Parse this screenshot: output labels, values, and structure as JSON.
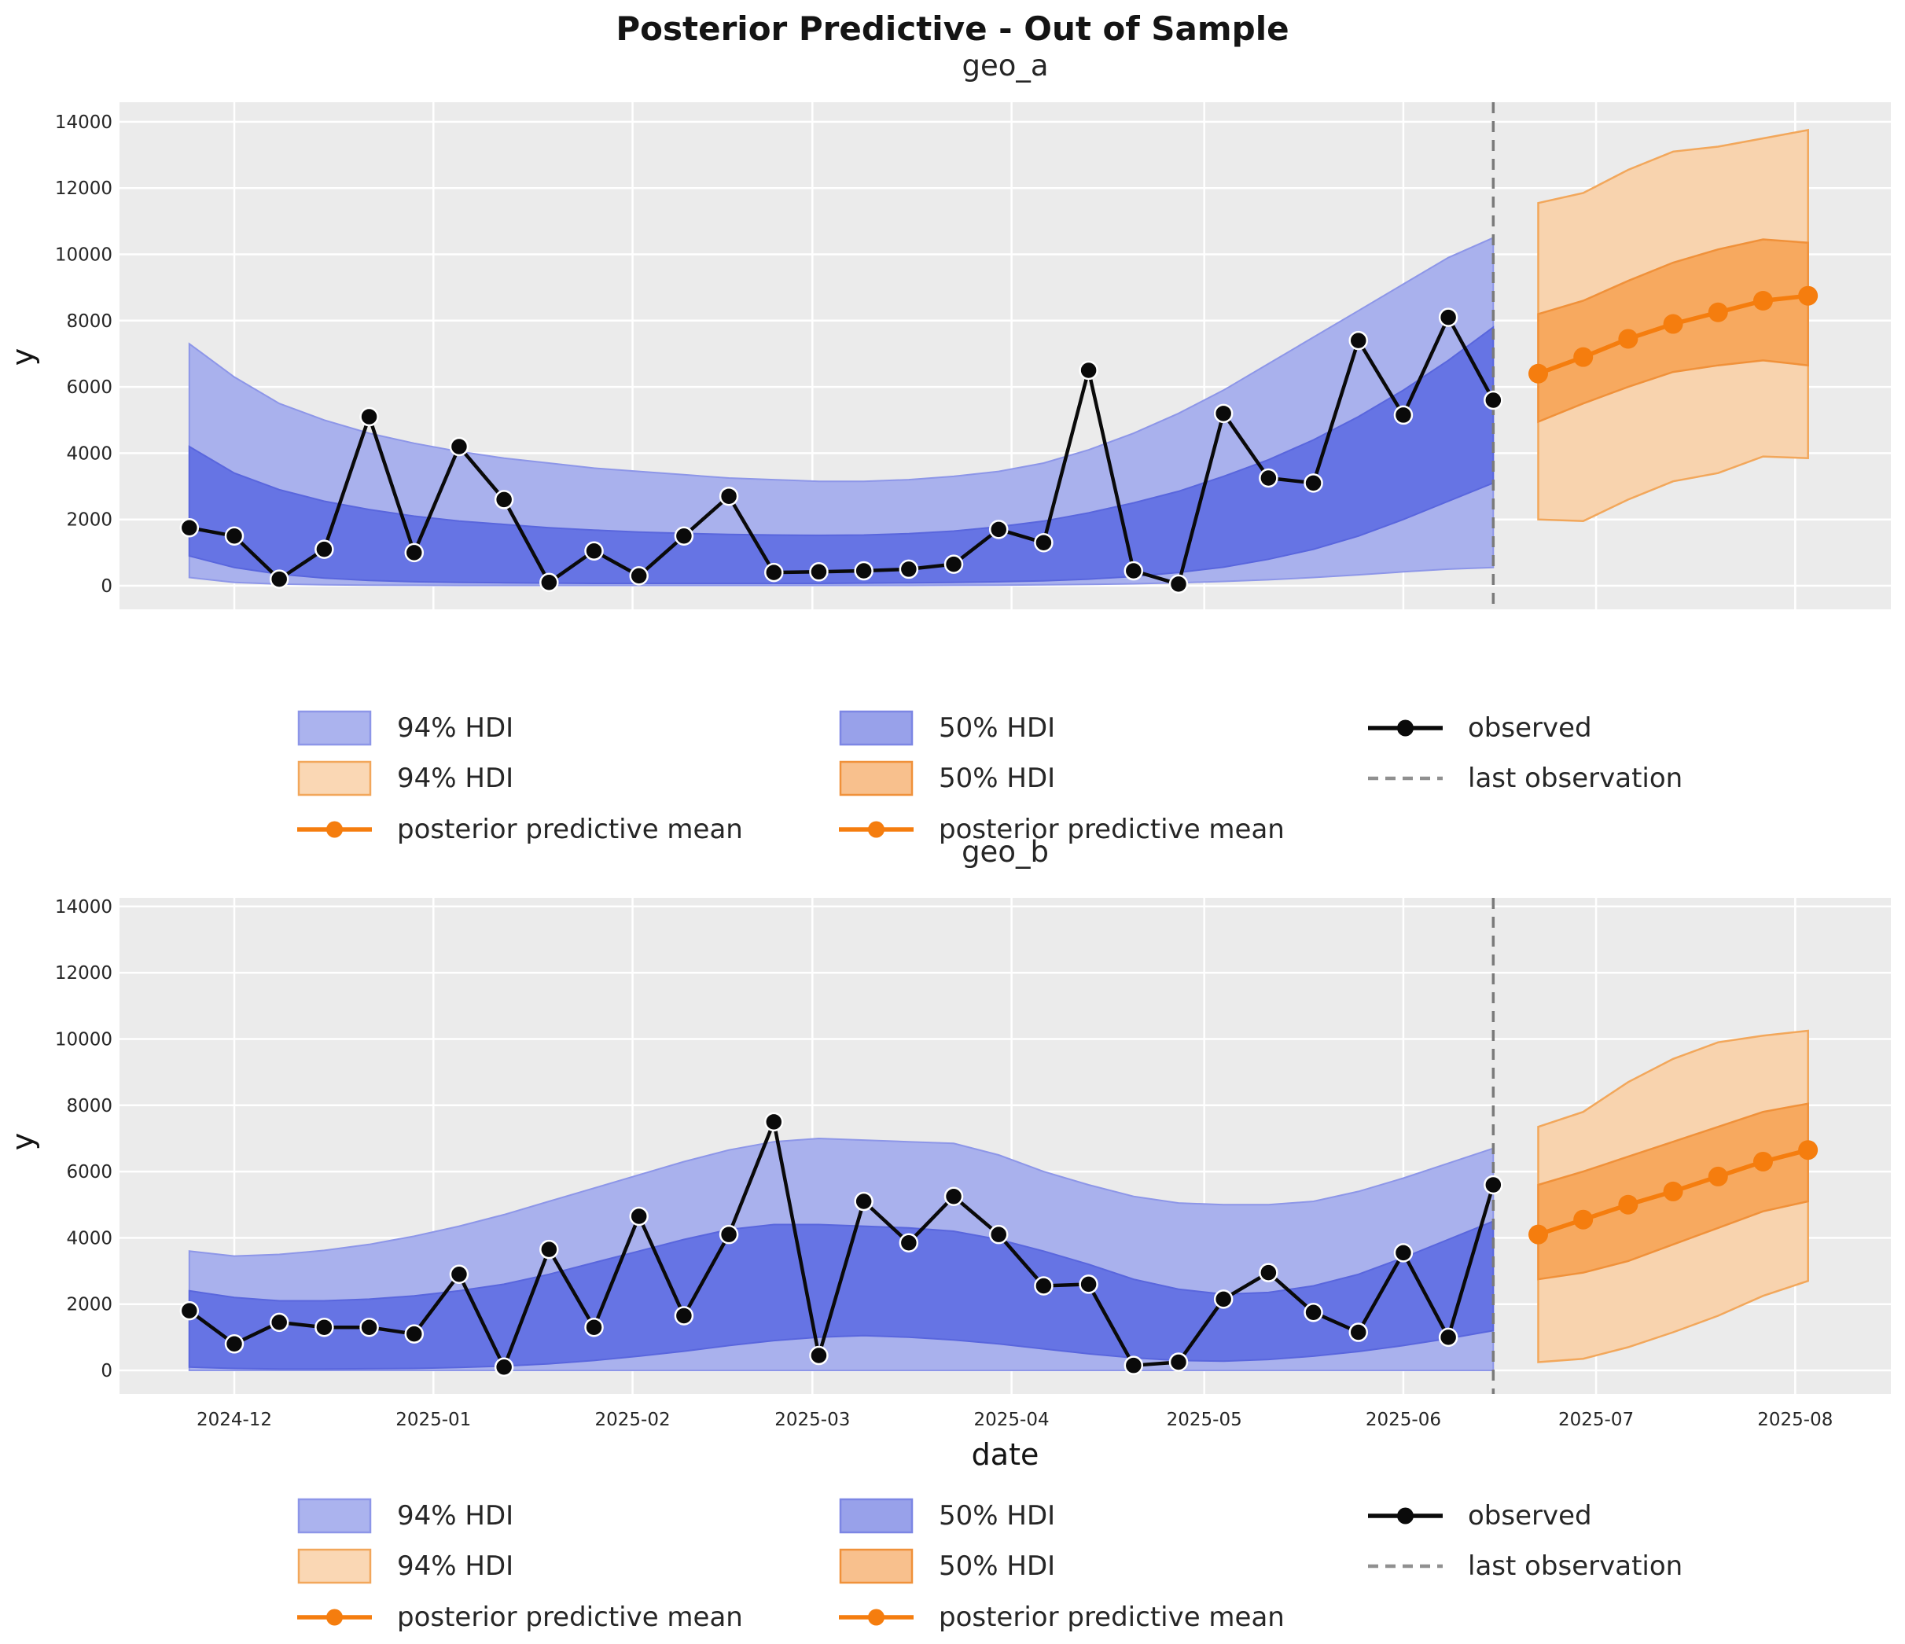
{
  "figure": {
    "title": "Posterior Predictive - Out of Sample"
  },
  "axes": {
    "y_label": "y",
    "x_label": "date",
    "y_ticks": [
      0,
      2000,
      4000,
      6000,
      8000,
      10000,
      12000,
      14000
    ],
    "x_ticks": [
      {
        "label": "2024-12",
        "date": "2024-12-01"
      },
      {
        "label": "2025-01",
        "date": "2025-01-01"
      },
      {
        "label": "2025-02",
        "date": "2025-02-01"
      },
      {
        "label": "2025-03",
        "date": "2025-03-01"
      },
      {
        "label": "2025-04",
        "date": "2025-04-01"
      },
      {
        "label": "2025-05",
        "date": "2025-05-01"
      },
      {
        "label": "2025-06",
        "date": "2025-06-01"
      },
      {
        "label": "2025-07",
        "date": "2025-07-01"
      },
      {
        "label": "2025-08",
        "date": "2025-08-01"
      }
    ],
    "grid": true
  },
  "colors": {
    "axes_bg": "#ebebeb",
    "grid": "#ffffff",
    "observed": "#0a0a0a",
    "observed_marker_edge": "#ffffff",
    "last_observation": "#7a7a7a",
    "forecast_mean": "#f57d0e",
    "blue_hdi94_fill": "#a9b1ed",
    "blue_hdi94_edge": "#8d96e8",
    "blue_hdi50_fill": "#6674e4",
    "blue_hdi50_edge": "#5966dd",
    "orange_hdi94_fill": "#f8d3ae",
    "orange_hdi94_edge": "#f2a75b",
    "orange_hdi50_fill": "#f7a95f",
    "orange_hdi50_edge": "#f0913a",
    "legend_blue_94": "#abb3ee",
    "legend_blue_50": "#98a1ea",
    "legend_orange_94": "#fad7b4",
    "legend_orange_50": "#f8c08d",
    "tick_text": "#262626"
  },
  "legend": {
    "items": [
      {
        "col": 0,
        "row": 0,
        "type": "patch",
        "label": "94% HDI",
        "fill": "#abb3ee",
        "edge": "#8d96e8",
        "name": "legend-item-94-hdi-blue"
      },
      {
        "col": 1,
        "row": 0,
        "type": "patch",
        "label": "50% HDI",
        "fill": "#98a1ea",
        "edge": "#7c86e4",
        "name": "legend-item-50-hdi-blue"
      },
      {
        "col": 2,
        "row": 0,
        "type": "line-dot",
        "label": "observed",
        "color": "#0a0a0a",
        "name": "legend-item-observed"
      },
      {
        "col": 0,
        "row": 1,
        "type": "patch",
        "label": "94% HDI",
        "fill": "#fad7b4",
        "edge": "#f2a75b",
        "name": "legend-item-94-hdi-orange"
      },
      {
        "col": 1,
        "row": 1,
        "type": "patch",
        "label": "50% HDI",
        "fill": "#f8c08d",
        "edge": "#f0913a",
        "name": "legend-item-50-hdi-orange"
      },
      {
        "col": 2,
        "row": 1,
        "type": "dash",
        "label": "last observation",
        "color": "#909090",
        "name": "legend-item-last-observation"
      },
      {
        "col": 0,
        "row": 2,
        "type": "line-dot",
        "label": "posterior predictive mean",
        "color": "#f57d0e",
        "name": "legend-item-posterior-predictive-mean-94"
      },
      {
        "col": 1,
        "row": 2,
        "type": "line-dot",
        "label": "posterior predictive mean",
        "color": "#f57d0e",
        "name": "legend-item-posterior-predictive-mean-50"
      }
    ]
  },
  "chart_data": [
    {
      "type": "line",
      "title": "geo_a",
      "ylim": [
        0,
        14000
      ],
      "last_observation": "2025-06-15",
      "dates_observed": [
        "2024-11-24",
        "2024-12-01",
        "2024-12-08",
        "2024-12-15",
        "2024-12-22",
        "2024-12-29",
        "2025-01-05",
        "2025-01-12",
        "2025-01-19",
        "2025-01-26",
        "2025-02-02",
        "2025-02-09",
        "2025-02-16",
        "2025-02-23",
        "2025-03-02",
        "2025-03-09",
        "2025-03-16",
        "2025-03-23",
        "2025-03-30",
        "2025-04-06",
        "2025-04-13",
        "2025-04-20",
        "2025-04-27",
        "2025-05-04",
        "2025-05-11",
        "2025-05-18",
        "2025-05-25",
        "2025-06-01",
        "2025-06-08",
        "2025-06-15"
      ],
      "observed": [
        1750,
        1500,
        200,
        1100,
        5100,
        1000,
        4200,
        2600,
        100,
        1050,
        300,
        1500,
        2700,
        400,
        420,
        450,
        500,
        650,
        1700,
        1300,
        6500,
        450,
        50,
        5200,
        3250,
        3100,
        7400,
        5150,
        8100,
        5600
      ],
      "hdi94_lower": [
        250,
        100,
        50,
        30,
        20,
        15,
        10,
        10,
        10,
        10,
        10,
        10,
        10,
        10,
        10,
        10,
        10,
        15,
        20,
        30,
        40,
        60,
        90,
        130,
        180,
        250,
        330,
        420,
        500,
        550
      ],
      "hdi94_upper": [
        7300,
        6300,
        5500,
        5000,
        4600,
        4300,
        4050,
        3850,
        3700,
        3550,
        3450,
        3350,
        3250,
        3200,
        3150,
        3150,
        3200,
        3300,
        3450,
        3700,
        4100,
        4600,
        5200,
        5900,
        6700,
        7500,
        8300,
        9100,
        9900,
        10500
      ],
      "hdi50_lower": [
        900,
        550,
        350,
        230,
        160,
        120,
        100,
        90,
        80,
        70,
        70,
        70,
        70,
        70,
        70,
        80,
        90,
        100,
        120,
        150,
        200,
        280,
        400,
        560,
        800,
        1100,
        1500,
        2000,
        2550,
        3100
      ],
      "hdi50_upper": [
        4200,
        3400,
        2900,
        2550,
        2300,
        2100,
        1950,
        1850,
        1750,
        1680,
        1620,
        1580,
        1550,
        1530,
        1520,
        1530,
        1570,
        1650,
        1780,
        1950,
        2200,
        2500,
        2850,
        3300,
        3800,
        4400,
        5100,
        5900,
        6800,
        7800
      ],
      "forecast": {
        "dates": [
          "2025-06-22",
          "2025-06-29",
          "2025-07-06",
          "2025-07-13",
          "2025-07-20",
          "2025-07-27",
          "2025-08-03"
        ],
        "mean": [
          6400,
          6900,
          7450,
          7900,
          8250,
          8600,
          8750
        ],
        "hdi94_lower": [
          2000,
          1950,
          2600,
          3150,
          3400,
          3900,
          3850
        ],
        "hdi94_upper": [
          11550,
          11850,
          12550,
          13100,
          13250,
          13500,
          13750
        ],
        "hdi50_lower": [
          4950,
          5500,
          6000,
          6450,
          6650,
          6800,
          6650
        ],
        "hdi50_upper": [
          8200,
          8600,
          9200,
          9750,
          10150,
          10450,
          10350
        ]
      }
    },
    {
      "type": "line",
      "title": "geo_b",
      "ylim": [
        0,
        14000
      ],
      "last_observation": "2025-06-15",
      "dates_observed": [
        "2024-11-24",
        "2024-12-01",
        "2024-12-08",
        "2024-12-15",
        "2024-12-22",
        "2024-12-29",
        "2025-01-05",
        "2025-01-12",
        "2025-01-19",
        "2025-01-26",
        "2025-02-02",
        "2025-02-09",
        "2025-02-16",
        "2025-02-23",
        "2025-03-02",
        "2025-03-09",
        "2025-03-16",
        "2025-03-23",
        "2025-03-30",
        "2025-04-06",
        "2025-04-13",
        "2025-04-20",
        "2025-04-27",
        "2025-05-04",
        "2025-05-11",
        "2025-05-18",
        "2025-05-25",
        "2025-06-01",
        "2025-06-08",
        "2025-06-15"
      ],
      "observed": [
        1800,
        800,
        1450,
        1300,
        1300,
        1100,
        2900,
        100,
        3650,
        1300,
        4650,
        1650,
        4100,
        7500,
        450,
        5100,
        3850,
        5250,
        4100,
        2550,
        2600,
        150,
        250,
        2150,
        2950,
        1750,
        1150,
        3550,
        1000,
        5600
      ],
      "hdi94_lower": [
        0,
        0,
        0,
        0,
        0,
        0,
        0,
        0,
        0,
        0,
        0,
        0,
        0,
        0,
        0,
        0,
        0,
        0,
        0,
        0,
        0,
        0,
        0,
        0,
        0,
        0,
        0,
        0,
        0,
        0
      ],
      "hdi94_upper": [
        3600,
        3450,
        3500,
        3620,
        3800,
        4050,
        4350,
        4700,
        5100,
        5500,
        5900,
        6300,
        6650,
        6900,
        7000,
        6950,
        6900,
        6850,
        6500,
        6000,
        5600,
        5250,
        5050,
        5000,
        5000,
        5100,
        5400,
        5800,
        6250,
        6700
      ],
      "hdi50_lower": [
        100,
        60,
        40,
        40,
        50,
        60,
        90,
        130,
        200,
        300,
        430,
        580,
        750,
        900,
        1000,
        1050,
        1000,
        920,
        800,
        650,
        500,
        380,
        300,
        280,
        330,
        430,
        570,
        750,
        960,
        1200
      ],
      "hdi50_upper": [
        2400,
        2200,
        2100,
        2100,
        2150,
        2250,
        2400,
        2600,
        2900,
        3250,
        3600,
        3950,
        4250,
        4400,
        4400,
        4350,
        4300,
        4200,
        3950,
        3600,
        3200,
        2750,
        2450,
        2300,
        2350,
        2550,
        2900,
        3400,
        3950,
        4500
      ],
      "forecast": {
        "dates": [
          "2025-06-22",
          "2025-06-29",
          "2025-07-06",
          "2025-07-13",
          "2025-07-20",
          "2025-07-27",
          "2025-08-03"
        ],
        "mean": [
          4100,
          4550,
          5000,
          5400,
          5850,
          6300,
          6650
        ],
        "hdi94_lower": [
          250,
          350,
          700,
          1150,
          1650,
          2250,
          2700
        ],
        "hdi94_upper": [
          7350,
          7800,
          8700,
          9400,
          9900,
          10100,
          10250
        ],
        "hdi50_lower": [
          2750,
          2950,
          3300,
          3800,
          4300,
          4800,
          5100
        ],
        "hdi50_upper": [
          5600,
          6000,
          6450,
          6900,
          7350,
          7800,
          8050
        ]
      }
    }
  ]
}
